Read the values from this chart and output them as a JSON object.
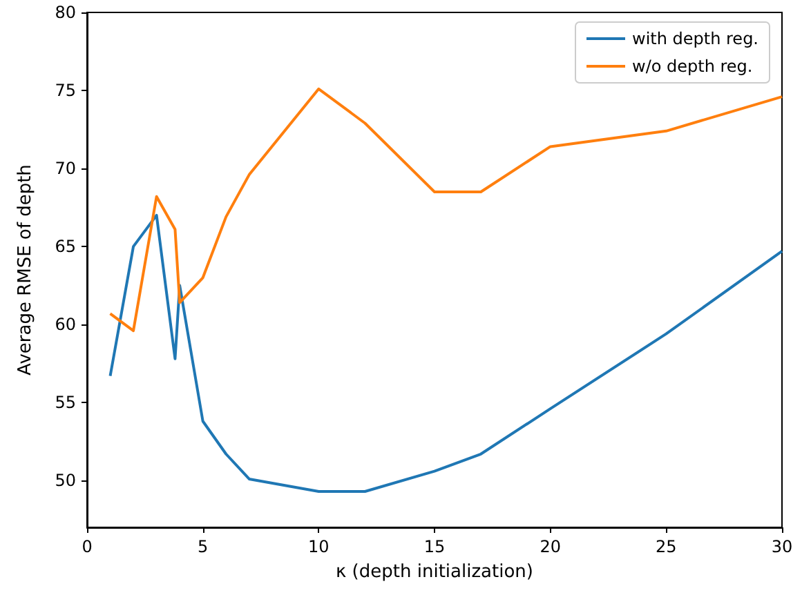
{
  "chart_data": {
    "type": "line",
    "xlabel": "κ (depth initialization)",
    "ylabel": "Average RMSE of depth",
    "xlim": [
      0,
      30
    ],
    "xticks": [
      0,
      5,
      10,
      15,
      20,
      25,
      30
    ],
    "ylim": [
      47,
      80
    ],
    "yticks": [
      50,
      55,
      60,
      65,
      70,
      75,
      80
    ],
    "grid": false,
    "legend": "top right",
    "marker": "none",
    "line_style": "solid",
    "series": [
      {
        "name": "with depth reg.",
        "color": "#1f77b4",
        "x": [
          1,
          2,
          3,
          3.8,
          4,
          5,
          6,
          7,
          10,
          12,
          15,
          17,
          20,
          25,
          30
        ],
        "values": [
          56.7,
          65,
          67,
          57.8,
          62.5,
          53.8,
          51.7,
          50.1,
          49.3,
          49.3,
          50.6,
          51.7,
          54.6,
          59.4,
          64.7
        ]
      },
      {
        "name": "w/o depth reg.",
        "color": "#ff7f0e",
        "x": [
          1,
          2,
          3,
          3.8,
          4,
          5,
          6,
          7,
          10,
          12,
          15,
          17,
          20,
          25,
          30
        ],
        "values": [
          60.7,
          59.6,
          68.2,
          66.1,
          61.4,
          63,
          66.9,
          69.6,
          75.1,
          72.9,
          68.5,
          68.5,
          71.4,
          72.4,
          74.6
        ]
      }
    ]
  }
}
